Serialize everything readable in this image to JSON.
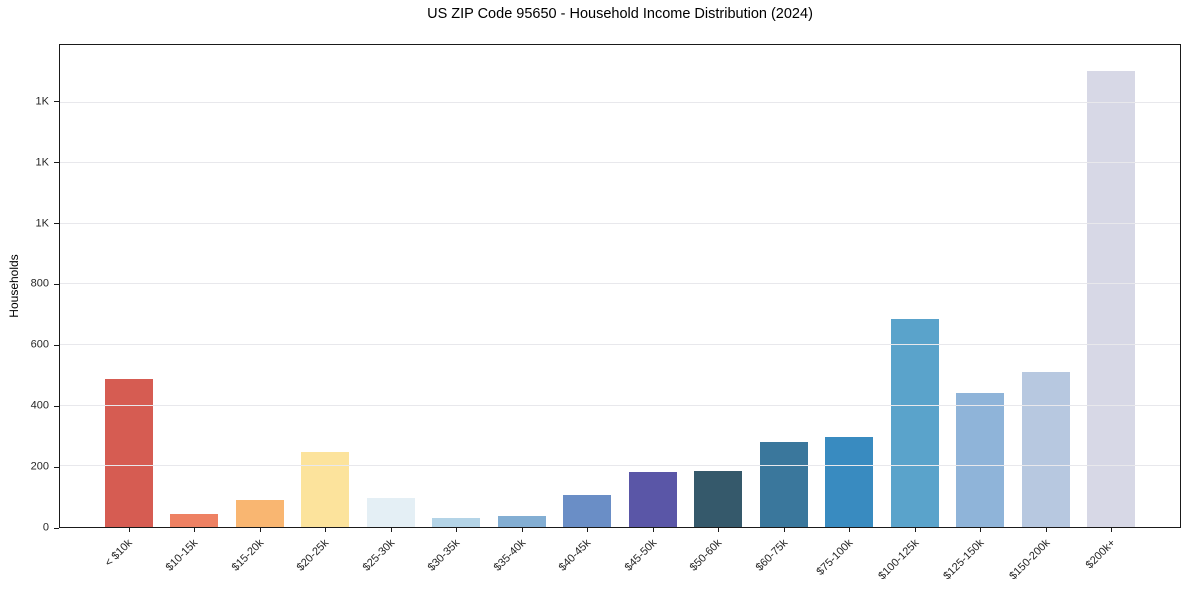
{
  "chart_data": {
    "type": "bar",
    "title": "US ZIP Code 95650 - Household Income Distribution (2024)",
    "xlabel": "",
    "ylabel": "Households",
    "categories": [
      "< $10k",
      "$10-15k",
      "$15-20k",
      "$20-25k",
      "$25-30k",
      "$30-35k",
      "$35-40k",
      "$40-45k",
      "$45-50k",
      "$50-60k",
      "$60-75k",
      "$75-100k",
      "$100-125k",
      "$125-150k",
      "$150-200k",
      "$200k+"
    ],
    "values": [
      487,
      42,
      88,
      246,
      97,
      30,
      37,
      107,
      180,
      184,
      279,
      296,
      686,
      443,
      512,
      1504
    ],
    "bar_colors": [
      "#d65c52",
      "#ee8163",
      "#f9b671",
      "#fce39c",
      "#e4eff5",
      "#b4d4e7",
      "#83aed3",
      "#6a8ec6",
      "#5a56a7",
      "#35596b",
      "#3a779c",
      "#398bc0",
      "#5aa3cb",
      "#8fb4d9",
      "#b7c8e0",
      "#d7d8e6"
    ],
    "ylim": [
      0,
      1590
    ],
    "yticks": [
      {
        "value": 0,
        "label": "0"
      },
      {
        "value": 200,
        "label": "200"
      },
      {
        "value": 400,
        "label": "400"
      },
      {
        "value": 600,
        "label": "600"
      },
      {
        "value": 800,
        "label": "800"
      },
      {
        "value": 1000,
        "label": "1K"
      },
      {
        "value": 1200,
        "label": "1K"
      },
      {
        "value": 1400,
        "label": "1K"
      }
    ],
    "grid": "horizontal",
    "legend": "none",
    "x_tick_rotation_deg": 45,
    "colors": {
      "background": "#ffffff",
      "spine": "#1a1a1a",
      "gridline": "#e8e8ec",
      "tick_label": "#262626",
      "title_text": "#000000"
    }
  }
}
